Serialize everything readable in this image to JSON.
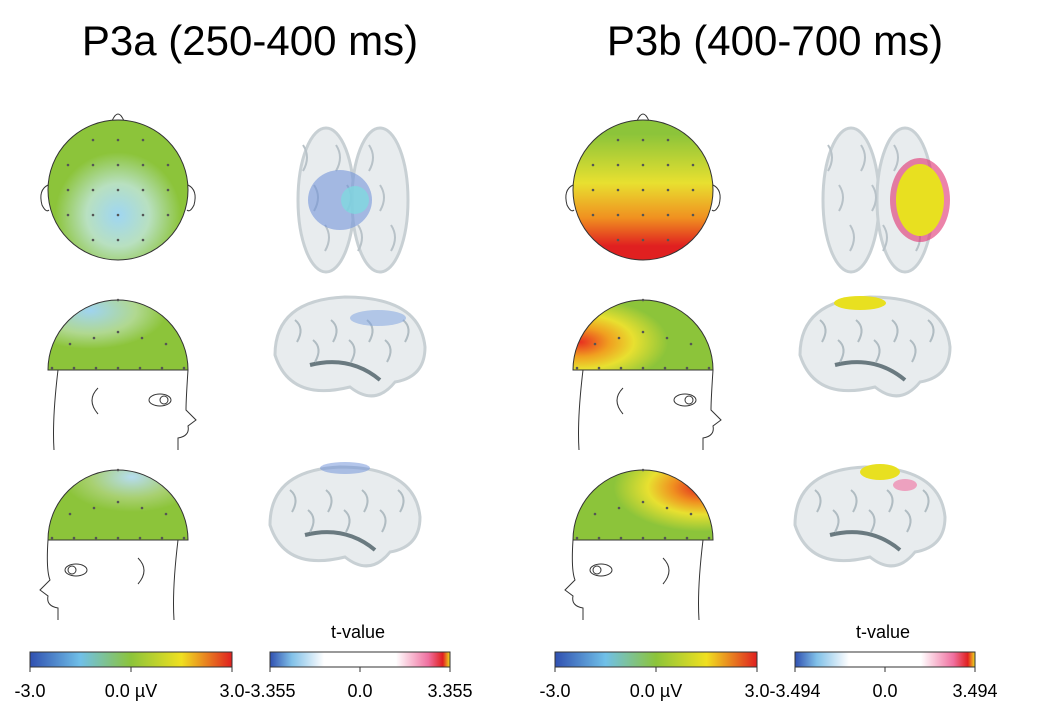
{
  "panels": [
    {
      "title": "P3a (250-400 ms)",
      "voltage_scale": {
        "min": "-3.0",
        "mid": "0.0 µV",
        "max": "3.0"
      },
      "t_scale": {
        "label": "t-value",
        "min": "-3.355",
        "mid": "0.0",
        "max": "3.355"
      }
    },
    {
      "title": "P3b (400-700 ms)",
      "voltage_scale": {
        "min": "-3.0",
        "mid": "0.0 µV",
        "max": "3.0"
      },
      "t_scale": {
        "label": "t-value",
        "min": "-3.494",
        "mid": "0.0",
        "max": "3.494"
      }
    }
  ]
}
